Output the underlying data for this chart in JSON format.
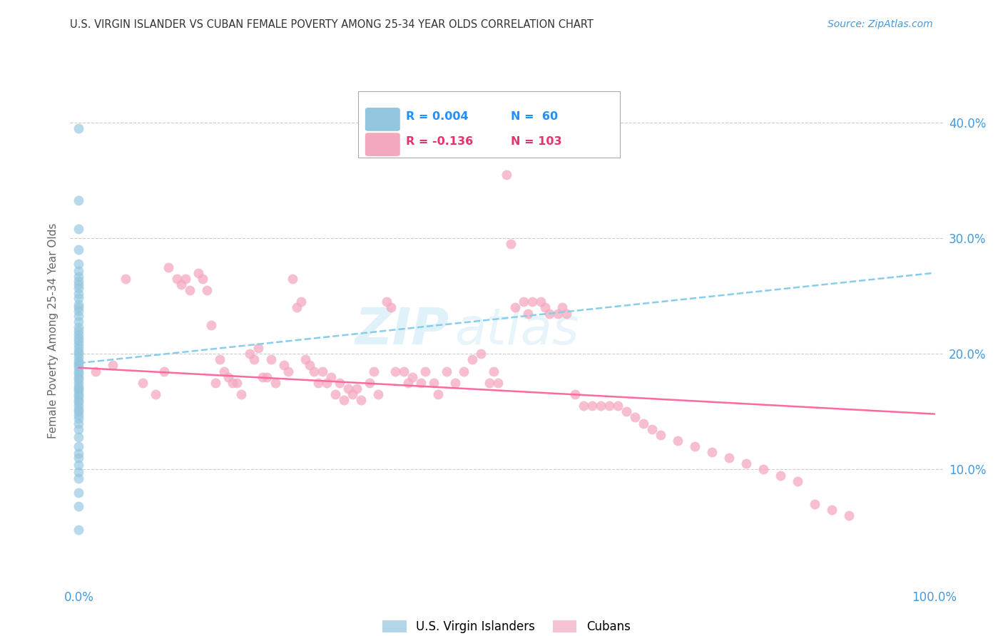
{
  "title": "U.S. VIRGIN ISLANDER VS CUBAN FEMALE POVERTY AMONG 25-34 YEAR OLDS CORRELATION CHART",
  "source": "Source: ZipAtlas.com",
  "ylabel": "Female Poverty Among 25-34 Year Olds",
  "ytick_labels": [
    "40.0%",
    "30.0%",
    "20.0%",
    "10.0%"
  ],
  "ytick_values": [
    0.4,
    0.3,
    0.2,
    0.1
  ],
  "xlim": [
    -0.01,
    1.01
  ],
  "ylim": [
    0.0,
    0.44
  ],
  "legend_r1": "R = 0.004",
  "legend_n1": "N =  60",
  "legend_r2": "R = -0.136",
  "legend_n2": "N = 103",
  "color_blue": "#92C5DE",
  "color_pink": "#F4A8BE",
  "color_blue_dark": "#1E90FF",
  "color_pink_dark": "#E8336A",
  "color_line_blue": "#87CEEB",
  "color_line_pink": "#FF69A0",
  "color_axis_labels": "#4499DD",
  "color_title": "#333333",
  "background_color": "#ffffff",
  "grid_color": "#cccccc",
  "blue_line_x": [
    0.0,
    1.0
  ],
  "blue_line_y": [
    0.192,
    0.27
  ],
  "pink_line_x": [
    0.0,
    1.0
  ],
  "pink_line_y": [
    0.188,
    0.148
  ],
  "vi_y": [
    0.395,
    0.333,
    0.308,
    0.29,
    0.278,
    0.272,
    0.267,
    0.263,
    0.26,
    0.257,
    0.252,
    0.248,
    0.243,
    0.24,
    0.237,
    0.233,
    0.228,
    0.223,
    0.22,
    0.217,
    0.214,
    0.211,
    0.208,
    0.205,
    0.202,
    0.2,
    0.197,
    0.194,
    0.192,
    0.19,
    0.188,
    0.185,
    0.183,
    0.18,
    0.178,
    0.175,
    0.172,
    0.17,
    0.168,
    0.165,
    0.163,
    0.16,
    0.158,
    0.155,
    0.152,
    0.15,
    0.147,
    0.144,
    0.14,
    0.135,
    0.128,
    0.12,
    0.114,
    0.11,
    0.104,
    0.098,
    0.092,
    0.08,
    0.068,
    0.048
  ],
  "cu_x": [
    0.02,
    0.04,
    0.055,
    0.075,
    0.09,
    0.1,
    0.105,
    0.115,
    0.12,
    0.125,
    0.13,
    0.14,
    0.145,
    0.15,
    0.155,
    0.16,
    0.165,
    0.17,
    0.175,
    0.18,
    0.185,
    0.19,
    0.2,
    0.205,
    0.21,
    0.215,
    0.22,
    0.225,
    0.23,
    0.24,
    0.245,
    0.25,
    0.255,
    0.26,
    0.265,
    0.27,
    0.275,
    0.28,
    0.285,
    0.29,
    0.295,
    0.3,
    0.305,
    0.31,
    0.315,
    0.32,
    0.325,
    0.33,
    0.34,
    0.345,
    0.35,
    0.36,
    0.365,
    0.37,
    0.38,
    0.385,
    0.39,
    0.4,
    0.405,
    0.415,
    0.42,
    0.43,
    0.44,
    0.45,
    0.46,
    0.47,
    0.48,
    0.485,
    0.49,
    0.5,
    0.505,
    0.51,
    0.52,
    0.525,
    0.53,
    0.54,
    0.545,
    0.55,
    0.56,
    0.565,
    0.57,
    0.58,
    0.59,
    0.6,
    0.61,
    0.62,
    0.63,
    0.64,
    0.65,
    0.66,
    0.67,
    0.68,
    0.7,
    0.72,
    0.74,
    0.76,
    0.78,
    0.8,
    0.82,
    0.84,
    0.86,
    0.88,
    0.9
  ],
  "cu_y": [
    0.185,
    0.19,
    0.265,
    0.175,
    0.165,
    0.185,
    0.275,
    0.265,
    0.26,
    0.265,
    0.255,
    0.27,
    0.265,
    0.255,
    0.225,
    0.175,
    0.195,
    0.185,
    0.18,
    0.175,
    0.175,
    0.165,
    0.2,
    0.195,
    0.205,
    0.18,
    0.18,
    0.195,
    0.175,
    0.19,
    0.185,
    0.265,
    0.24,
    0.245,
    0.195,
    0.19,
    0.185,
    0.175,
    0.185,
    0.175,
    0.18,
    0.165,
    0.175,
    0.16,
    0.17,
    0.165,
    0.17,
    0.16,
    0.175,
    0.185,
    0.165,
    0.245,
    0.24,
    0.185,
    0.185,
    0.175,
    0.18,
    0.175,
    0.185,
    0.175,
    0.165,
    0.185,
    0.175,
    0.185,
    0.195,
    0.2,
    0.175,
    0.185,
    0.175,
    0.355,
    0.295,
    0.24,
    0.245,
    0.235,
    0.245,
    0.245,
    0.24,
    0.235,
    0.235,
    0.24,
    0.235,
    0.165,
    0.155,
    0.155,
    0.155,
    0.155,
    0.155,
    0.15,
    0.145,
    0.14,
    0.135,
    0.13,
    0.125,
    0.12,
    0.115,
    0.11,
    0.105,
    0.1,
    0.095,
    0.09,
    0.07,
    0.065,
    0.06
  ]
}
